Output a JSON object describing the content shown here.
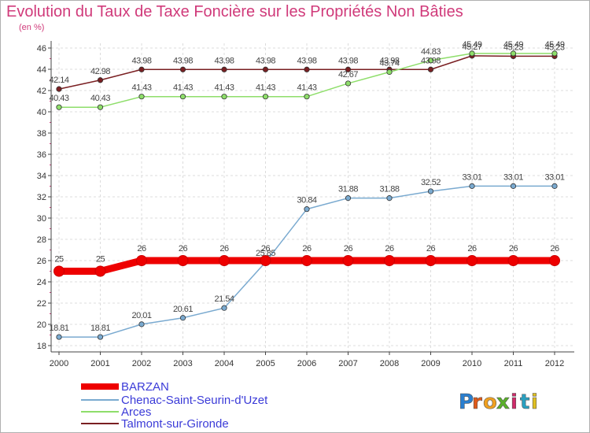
{
  "chart_data": {
    "type": "line",
    "title": "Evolution du Taux de Taxe Foncière sur les Propriétés Non Bâties",
    "subtitle": "(en %)",
    "x": [
      "2000",
      "2001",
      "2002",
      "2003",
      "2004",
      "2005",
      "2006",
      "2007",
      "2008",
      "2009",
      "2010",
      "2011",
      "2012"
    ],
    "ylim": [
      18,
      46
    ],
    "yticks": [
      "18",
      "20",
      "22",
      "24",
      "26",
      "28",
      "30",
      "32",
      "34",
      "36",
      "38",
      "40",
      "42",
      "44",
      "46"
    ],
    "grid": true,
    "legend_position": "bottom-left",
    "series": [
      {
        "name": "BARZAN",
        "color": "#ee0000",
        "values": [
          25,
          25,
          26,
          26,
          26,
          26,
          26,
          26,
          26,
          26,
          26,
          26,
          26
        ],
        "labels": [
          "25",
          "25",
          "26",
          "26",
          "26",
          "26",
          "26",
          "26",
          "26",
          "26",
          "26",
          "26",
          "26"
        ]
      },
      {
        "name": "Chenac-Saint-Seurin-d'Uzet",
        "color": "#7aaad0",
        "values": [
          18.81,
          18.81,
          20.01,
          20.61,
          21.54,
          25.85,
          30.84,
          31.88,
          31.88,
          32.52,
          33.01,
          33.01,
          33.01
        ],
        "labels": [
          "18.81",
          "18.81",
          "20.01",
          "20.61",
          "21.54",
          "25.85",
          "30.84",
          "31.88",
          "31.88",
          "32.52",
          "33.01",
          "33.01",
          "33.01"
        ]
      },
      {
        "name": "Arces",
        "color": "#8ede6a",
        "values": [
          40.43,
          40.43,
          41.43,
          41.43,
          41.43,
          41.43,
          41.43,
          42.67,
          43.74,
          44.83,
          45.49,
          45.49,
          45.49
        ],
        "labels": [
          "40.43",
          "40.43",
          "41.43",
          "41.43",
          "41.43",
          "41.43",
          "41.43",
          "42.67",
          "43.74",
          "44.83",
          "45.49",
          "45.49",
          "45.49"
        ]
      },
      {
        "name": "Talmont-sur-Gironde",
        "color": "#7a1f22",
        "values": [
          42.14,
          42.98,
          43.98,
          43.98,
          43.98,
          43.98,
          43.98,
          43.98,
          43.98,
          43.98,
          45.27,
          45.23,
          45.23
        ],
        "labels": [
          "42.14",
          "42.98",
          "43.98",
          "43.98",
          "43.98",
          "43.98",
          "43.98",
          "43.98",
          "43.98",
          "43.98",
          "45.27",
          "45.23",
          "45.23"
        ]
      }
    ]
  },
  "logo": {
    "letters": [
      "P",
      "r",
      "o",
      "x",
      "i",
      "t",
      "i"
    ],
    "colors": [
      "#2a7fd0",
      "#e05a1a",
      "#f0a020",
      "#5ab02a",
      "#d02a6a",
      "#2aa0c0",
      "#e0c020"
    ]
  }
}
